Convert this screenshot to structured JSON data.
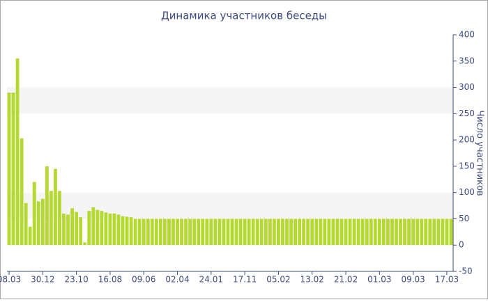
{
  "chart_data": {
    "type": "bar",
    "title": "Динамика участников беседы",
    "y_axis_label": "Число участников",
    "categories": [
      "08.03",
      null,
      null,
      null,
      null,
      null,
      null,
      null,
      "30.12",
      null,
      null,
      null,
      null,
      null,
      null,
      null,
      "23.10",
      null,
      null,
      null,
      null,
      null,
      null,
      null,
      "16.08",
      null,
      null,
      null,
      null,
      null,
      null,
      null,
      "09.06",
      null,
      null,
      null,
      null,
      null,
      null,
      null,
      "02.04",
      null,
      null,
      null,
      null,
      null,
      null,
      null,
      "24.01",
      null,
      null,
      null,
      null,
      null,
      null,
      null,
      "17.11",
      null,
      null,
      null,
      null,
      null,
      null,
      null,
      "05.02",
      null,
      null,
      null,
      null,
      null,
      null,
      null,
      "13.02",
      null,
      null,
      null,
      null,
      null,
      null,
      null,
      "21.02",
      null,
      null,
      null,
      null,
      null,
      null,
      null,
      "01.03",
      null,
      null,
      null,
      null,
      null,
      null,
      null,
      "09.03",
      null,
      null,
      null,
      null,
      null,
      null,
      null,
      "17.03",
      null
    ],
    "values": [
      290,
      290,
      355,
      203,
      80,
      35,
      120,
      83,
      88,
      150,
      103,
      145,
      103,
      60,
      58,
      70,
      63,
      53,
      5,
      65,
      72,
      67,
      65,
      62,
      60,
      60,
      58,
      55,
      54,
      53,
      50,
      50,
      50,
      50,
      50,
      50,
      50,
      50,
      50,
      50,
      50,
      50,
      50,
      50,
      50,
      50,
      50,
      50,
      50,
      50,
      50,
      50,
      50,
      50,
      50,
      50,
      50,
      50,
      50,
      50,
      50,
      50,
      50,
      50,
      50,
      50,
      50,
      50,
      50,
      50,
      50,
      50,
      50,
      50,
      50,
      50,
      50,
      50,
      50,
      50,
      50,
      50,
      50,
      50,
      50,
      50,
      50,
      50,
      50,
      50,
      50,
      50,
      50,
      50,
      50,
      50,
      50,
      50,
      50,
      50,
      50,
      50,
      50,
      50,
      50,
      50
    ],
    "color": "#b5d832",
    "ylim": [
      -50,
      400
    ],
    "yticks": [
      -50,
      0,
      50,
      100,
      150,
      200,
      250,
      300,
      350,
      400
    ],
    "grid": "bands",
    "y_axis_side": "right"
  }
}
